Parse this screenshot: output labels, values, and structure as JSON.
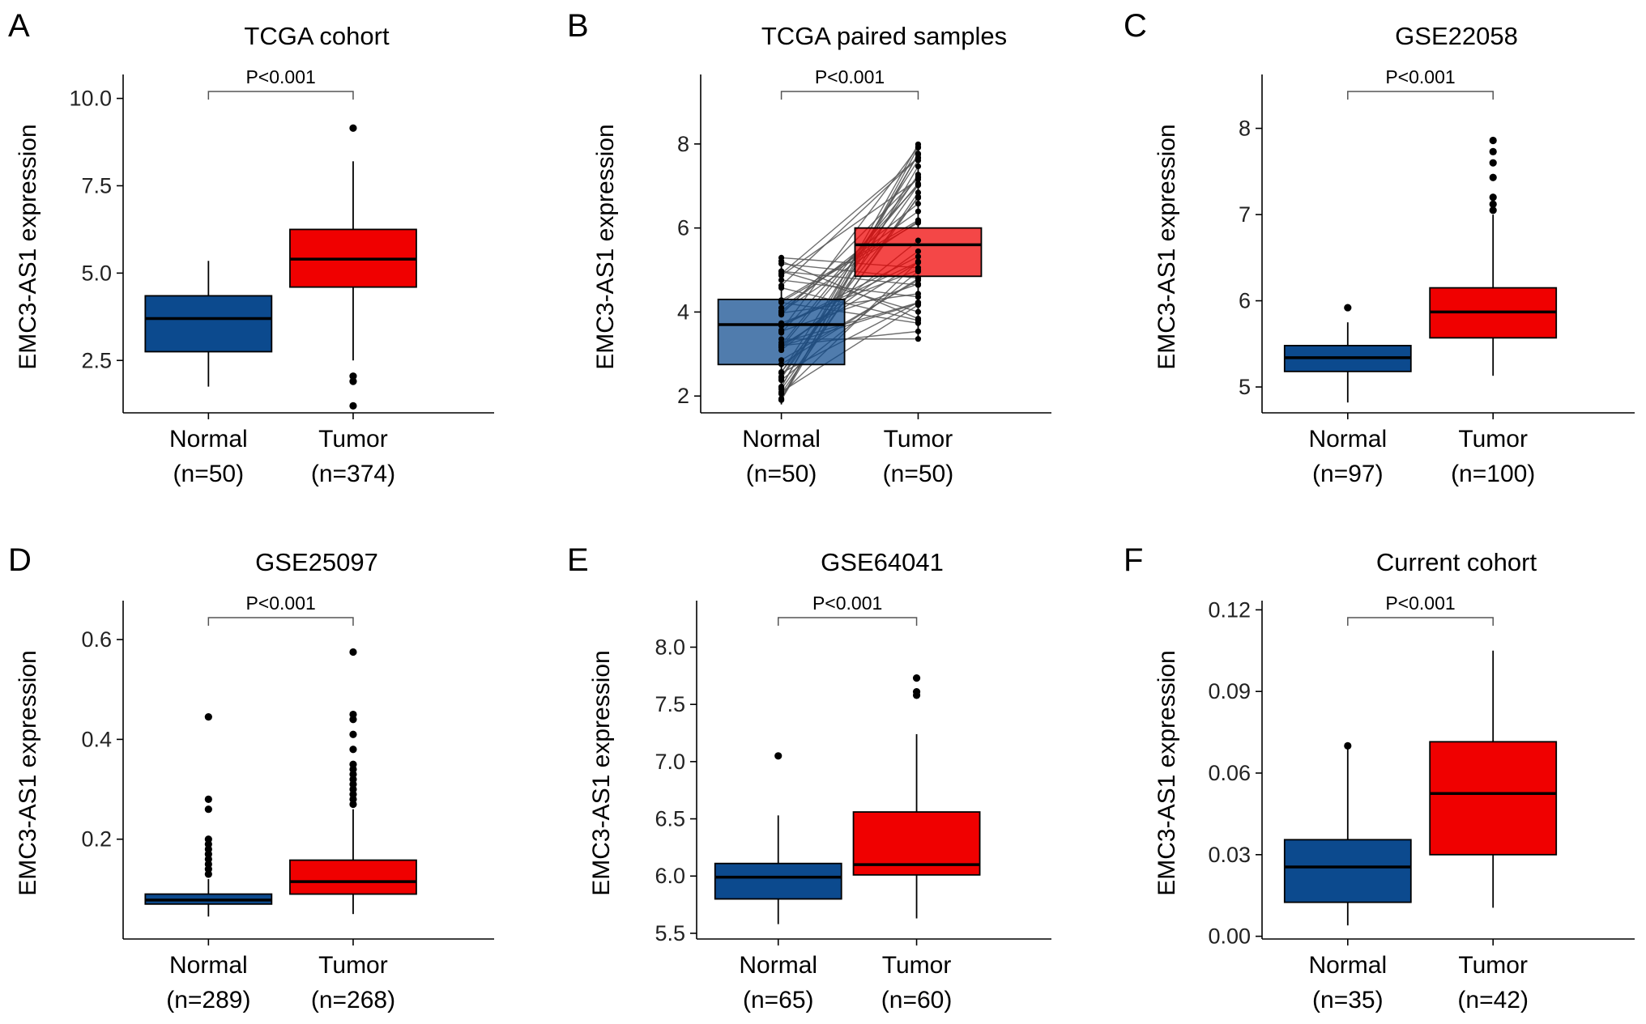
{
  "colors": {
    "normal": "#0c4a8e",
    "tumor": "#f00000",
    "pair_line": "#555555"
  },
  "chart_data": [
    {
      "panel": "A",
      "type": "box",
      "title": "TCGA cohort",
      "ylabel": "EMC3-AS1 expression",
      "ylim": [
        1.0,
        10.5
      ],
      "yticks": [
        2.5,
        5.0,
        7.5,
        10.0
      ],
      "ytick_labels": [
        "2.5",
        "5.0",
        "7.5",
        "10.0"
      ],
      "pvalue": "P<0.001",
      "groups": [
        {
          "name": "Normal",
          "n_label": "(n=50)",
          "whisker_low": 1.75,
          "q1": 2.75,
          "median": 3.7,
          "q3": 4.35,
          "whisker_high": 5.35,
          "outliers": []
        },
        {
          "name": "Tumor",
          "n_label": "(n=374)",
          "whisker_low": 2.5,
          "q1": 4.6,
          "median": 5.4,
          "q3": 6.25,
          "whisker_high": 8.2,
          "outliers": [
            9.15,
            2.05,
            1.9,
            1.2
          ]
        }
      ]
    },
    {
      "panel": "B",
      "type": "box_paired",
      "title": "TCGA paired samples",
      "ylabel": "EMC3-AS1 expression",
      "ylim": [
        1.6,
        9.5
      ],
      "yticks": [
        2,
        4,
        6,
        8
      ],
      "ytick_labels": [
        "2",
        "4",
        "6",
        "8"
      ],
      "pvalue": "P<0.001",
      "groups": [
        {
          "name": "Normal",
          "n_label": "(n=50)",
          "whisker_low": 1.8,
          "q1": 2.75,
          "median": 3.7,
          "q3": 4.3,
          "whisker_high": 5.3,
          "outliers": []
        },
        {
          "name": "Tumor",
          "n_label": "(n=50)",
          "whisker_low": 3.35,
          "q1": 4.85,
          "median": 5.6,
          "q3": 6.0,
          "whisker_high": 8.05,
          "outliers": []
        }
      ]
    },
    {
      "panel": "C",
      "type": "box",
      "title": "GSE22058",
      "ylabel": "EMC3-AS1 expression",
      "ylim": [
        4.7,
        8.55
      ],
      "yticks": [
        5,
        6,
        7,
        8
      ],
      "ytick_labels": [
        "5",
        "6",
        "7",
        "8"
      ],
      "pvalue": "P<0.001",
      "groups": [
        {
          "name": "Normal",
          "n_label": "(n=97)",
          "whisker_low": 4.82,
          "q1": 5.18,
          "median": 5.34,
          "q3": 5.48,
          "whisker_high": 5.75,
          "outliers": [
            5.92
          ]
        },
        {
          "name": "Tumor",
          "n_label": "(n=100)",
          "whisker_low": 5.13,
          "q1": 5.57,
          "median": 5.87,
          "q3": 6.15,
          "whisker_high": 7.0,
          "outliers": [
            7.05,
            7.12,
            7.2,
            7.43,
            7.6,
            7.73,
            7.86
          ]
        }
      ]
    },
    {
      "panel": "D",
      "type": "box",
      "title": "GSE25097",
      "ylabel": "EMC3-AS1 expression",
      "ylim": [
        0.0,
        0.665
      ],
      "yticks": [
        0.2,
        0.4,
        0.6
      ],
      "ytick_labels": [
        "0.2",
        "0.4",
        "0.6"
      ],
      "pvalue": "P<0.001",
      "groups": [
        {
          "name": "Normal",
          "n_label": "(n=289)",
          "whisker_low": 0.045,
          "q1": 0.07,
          "median": 0.078,
          "q3": 0.09,
          "whisker_high": 0.12,
          "outliers": [
            0.13,
            0.14,
            0.15,
            0.16,
            0.17,
            0.18,
            0.19,
            0.2,
            0.26,
            0.28,
            0.445
          ]
        },
        {
          "name": "Tumor",
          "n_label": "(n=268)",
          "whisker_low": 0.05,
          "q1": 0.09,
          "median": 0.115,
          "q3": 0.158,
          "whisker_high": 0.26,
          "outliers": [
            0.27,
            0.28,
            0.29,
            0.3,
            0.31,
            0.32,
            0.33,
            0.34,
            0.35,
            0.38,
            0.41,
            0.44,
            0.45,
            0.575
          ]
        }
      ]
    },
    {
      "panel": "E",
      "type": "box",
      "title": "GSE64041",
      "ylabel": "EMC3-AS1 expression",
      "ylim": [
        5.45,
        8.35
      ],
      "yticks": [
        5.5,
        6.0,
        6.5,
        7.0,
        7.5,
        8.0
      ],
      "ytick_labels": [
        "5.5",
        "6.0",
        "6.5",
        "7.0",
        "7.5",
        "8.0"
      ],
      "pvalue": "P<0.001",
      "groups": [
        {
          "name": "Normal",
          "n_label": "(n=65)",
          "whisker_low": 5.58,
          "q1": 5.8,
          "median": 5.99,
          "q3": 6.11,
          "whisker_high": 6.53,
          "outliers": [
            7.05
          ]
        },
        {
          "name": "Tumor",
          "n_label": "(n=60)",
          "whisker_low": 5.63,
          "q1": 6.01,
          "median": 6.1,
          "q3": 6.56,
          "whisker_high": 7.24,
          "outliers": [
            7.58,
            7.61,
            7.73
          ]
        }
      ]
    },
    {
      "panel": "F",
      "type": "box",
      "title": "Current cohort",
      "ylabel": "EMC3-AS1 expression",
      "ylim": [
        -0.001,
        0.121
      ],
      "yticks": [
        0.0,
        0.03,
        0.06,
        0.09,
        0.12
      ],
      "ytick_labels": [
        "0.00",
        "0.03",
        "0.06",
        "0.09",
        "0.12"
      ],
      "pvalue": "P<0.001",
      "groups": [
        {
          "name": "Normal",
          "n_label": "(n=35)",
          "whisker_low": 0.004,
          "q1": 0.0125,
          "median": 0.0255,
          "q3": 0.0355,
          "whisker_high": 0.069,
          "outliers": [
            0.07
          ]
        },
        {
          "name": "Tumor",
          "n_label": "(n=42)",
          "whisker_low": 0.0105,
          "q1": 0.03,
          "median": 0.0525,
          "q3": 0.0715,
          "whisker_high": 0.105,
          "outliers": []
        }
      ]
    }
  ]
}
